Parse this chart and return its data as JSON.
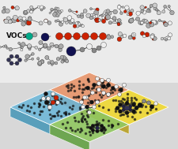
{
  "background_color": "#d8d8d8",
  "upper_bg": "#e8e8e8",
  "vocs_label": "VOCs",
  "tile_colors": {
    "yellow": "#f0d830",
    "orange": "#e8956a",
    "green": "#90c860",
    "blue": "#70b8d8"
  },
  "tile_edge_colors": {
    "yellow_side": "#b8a020",
    "orange_side": "#c06838",
    "green_side": "#60a040",
    "blue_side": "#4898b8"
  },
  "dot_color": "#1a1a1a",
  "dot_size": 1.4,
  "atom_gray": "#aaaaaa",
  "atom_white": "#eeeeee",
  "atom_red": "#cc2200",
  "atom_dark": "#222222",
  "atom_navy": "#101050",
  "atom_teal": "#00a888",
  "bond_color": "#444444"
}
